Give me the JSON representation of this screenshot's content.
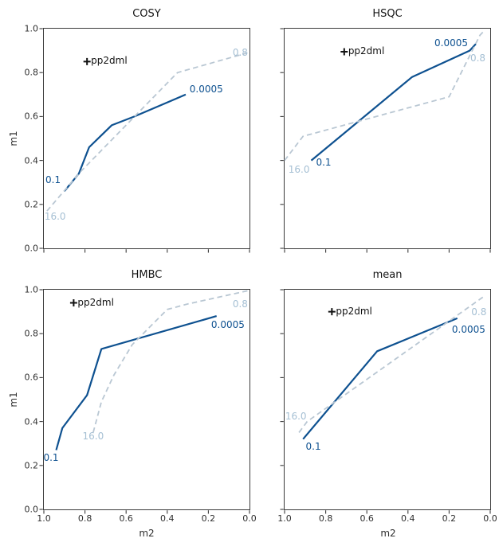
{
  "figure": {
    "xlabel": "m2",
    "ylabel": "m1",
    "x_tick_labels": [
      "1.0",
      "0.8",
      "0.6",
      "0.4",
      "0.2",
      "0.0"
    ],
    "y_tick_labels": [
      "1.0",
      "0.8",
      "0.6",
      "0.4",
      "0.2",
      "0.0"
    ],
    "xlim": [
      1.0,
      0.0
    ],
    "ylim": [
      0.0,
      1.0
    ]
  },
  "colors": {
    "solid_line": "#0e5190",
    "solid_label": "#0e5190",
    "dashed_line": "#b9c7d3",
    "dashed_label": "#a6c0d4",
    "marker": "#111111",
    "axis": "#3a3a3a",
    "tick_label": "#2e2e2e",
    "title": "#141414",
    "background": "#ffffff"
  },
  "chart_data": [
    {
      "type": "line",
      "title": "COSY",
      "xlabel": "m2",
      "ylabel": "m1",
      "xlim": [
        1.0,
        0.0
      ],
      "ylim": [
        0.0,
        1.0
      ],
      "x_inverted": true,
      "grid": false,
      "show_x_tick_labels": false,
      "show_y_tick_labels": true,
      "series": [
        {
          "name": "dml-threshold-curve",
          "style": "solid",
          "start_label": "0.1",
          "end_label": "0.0005",
          "points": [
            [
              0.9,
              0.26
            ],
            [
              0.83,
              0.34
            ],
            [
              0.78,
              0.46
            ],
            [
              0.67,
              0.56
            ],
            [
              0.56,
              0.6
            ],
            [
              0.31,
              0.7
            ]
          ]
        },
        {
          "name": "pp-threshold-curve",
          "style": "dashed",
          "start_label": "16.0",
          "end_label": "0.8",
          "points": [
            [
              0.985,
              0.17
            ],
            [
              0.82,
              0.35
            ],
            [
              0.35,
              0.8
            ],
            [
              0.01,
              0.89
            ]
          ]
        }
      ],
      "marker": {
        "label": "pp2dml",
        "x": 0.79,
        "y": 0.85
      },
      "labels": [
        {
          "text": "0.1",
          "x": 0.955,
          "y": 0.31,
          "series": "solid"
        },
        {
          "text": "0.0005",
          "x": 0.21,
          "y": 0.725,
          "series": "solid"
        },
        {
          "text": "16.0",
          "x": 0.945,
          "y": 0.145,
          "series": "dashed"
        },
        {
          "text": "0.8",
          "x": 0.045,
          "y": 0.893,
          "series": "dashed"
        }
      ]
    },
    {
      "type": "line",
      "title": "HSQC",
      "xlabel": "m2",
      "ylabel": "m1",
      "xlim": [
        1.0,
        0.0
      ],
      "ylim": [
        0.0,
        1.0
      ],
      "x_inverted": true,
      "grid": false,
      "show_x_tick_labels": false,
      "show_y_tick_labels": false,
      "series": [
        {
          "name": "dml-threshold-curve",
          "style": "solid",
          "start_label": "0.1",
          "end_label": "0.0005",
          "points": [
            [
              0.87,
              0.4
            ],
            [
              0.38,
              0.78
            ],
            [
              0.1,
              0.9
            ],
            [
              0.07,
              0.93
            ]
          ]
        },
        {
          "name": "pp-threshold-curve",
          "style": "dashed",
          "start_label": "16.0",
          "end_label": "0.8",
          "points": [
            [
              1.0,
              0.4
            ],
            [
              0.91,
              0.51
            ],
            [
              0.2,
              0.69
            ],
            [
              0.05,
              0.97
            ],
            [
              0.03,
              0.99
            ]
          ]
        }
      ],
      "marker": {
        "label": "pp2dml",
        "x": 0.71,
        "y": 0.895
      },
      "labels": [
        {
          "text": "0.1",
          "x": 0.81,
          "y": 0.39,
          "series": "solid"
        },
        {
          "text": "0.0005",
          "x": 0.19,
          "y": 0.935,
          "series": "solid"
        },
        {
          "text": "16.0",
          "x": 0.93,
          "y": 0.36,
          "series": "dashed"
        },
        {
          "text": "0.8",
          "x": 0.06,
          "y": 0.865,
          "series": "dashed"
        }
      ]
    },
    {
      "type": "line",
      "title": "HMBC",
      "xlabel": "m2",
      "ylabel": "m1",
      "xlim": [
        1.0,
        0.0
      ],
      "ylim": [
        0.0,
        1.0
      ],
      "x_inverted": true,
      "grid": false,
      "show_x_tick_labels": true,
      "show_y_tick_labels": true,
      "series": [
        {
          "name": "dml-threshold-curve",
          "style": "solid",
          "start_label": "0.1",
          "end_label": "0.0005",
          "points": [
            [
              0.94,
              0.27
            ],
            [
              0.91,
              0.37
            ],
            [
              0.87,
              0.42
            ],
            [
              0.79,
              0.52
            ],
            [
              0.72,
              0.73
            ],
            [
              0.16,
              0.88
            ]
          ]
        },
        {
          "name": "pp-threshold-curve",
          "style": "dashed",
          "start_label": "16.0",
          "end_label": "0.8",
          "points": [
            [
              0.76,
              0.35
            ],
            [
              0.72,
              0.49
            ],
            [
              0.66,
              0.61
            ],
            [
              0.57,
              0.75
            ],
            [
              0.4,
              0.91
            ],
            [
              0.3,
              0.935
            ],
            [
              0.01,
              0.995
            ]
          ]
        }
      ],
      "marker": {
        "label": "pp2dml",
        "x": 0.855,
        "y": 0.94
      },
      "labels": [
        {
          "text": "0.1",
          "x": 0.965,
          "y": 0.235,
          "series": "solid"
        },
        {
          "text": "0.0005",
          "x": 0.105,
          "y": 0.84,
          "series": "solid"
        },
        {
          "text": "16.0",
          "x": 0.76,
          "y": 0.335,
          "series": "dashed"
        },
        {
          "text": "0.8",
          "x": 0.045,
          "y": 0.936,
          "series": "dashed"
        }
      ]
    },
    {
      "type": "line",
      "title": "mean",
      "xlabel": "m2",
      "ylabel": "m1",
      "xlim": [
        1.0,
        0.0
      ],
      "ylim": [
        0.0,
        1.0
      ],
      "x_inverted": true,
      "grid": false,
      "show_x_tick_labels": true,
      "show_y_tick_labels": false,
      "series": [
        {
          "name": "dml-threshold-curve",
          "style": "solid",
          "start_label": "0.1",
          "end_label": "0.0005",
          "points": [
            [
              0.91,
              0.32
            ],
            [
              0.55,
              0.72
            ],
            [
              0.16,
              0.87
            ]
          ]
        },
        {
          "name": "pp-threshold-curve",
          "style": "dashed",
          "start_label": "16.0",
          "end_label": "0.8",
          "points": [
            [
              0.93,
              0.35
            ],
            [
              0.89,
              0.4
            ],
            [
              0.03,
              0.97
            ]
          ]
        }
      ],
      "marker": {
        "label": "pp2dml",
        "x": 0.77,
        "y": 0.9
      },
      "labels": [
        {
          "text": "0.1",
          "x": 0.86,
          "y": 0.285,
          "series": "solid"
        },
        {
          "text": "0.0005",
          "x": 0.105,
          "y": 0.82,
          "series": "solid"
        },
        {
          "text": "16.0",
          "x": 0.945,
          "y": 0.425,
          "series": "dashed"
        },
        {
          "text": "0.8",
          "x": 0.055,
          "y": 0.9,
          "series": "dashed"
        }
      ]
    }
  ]
}
